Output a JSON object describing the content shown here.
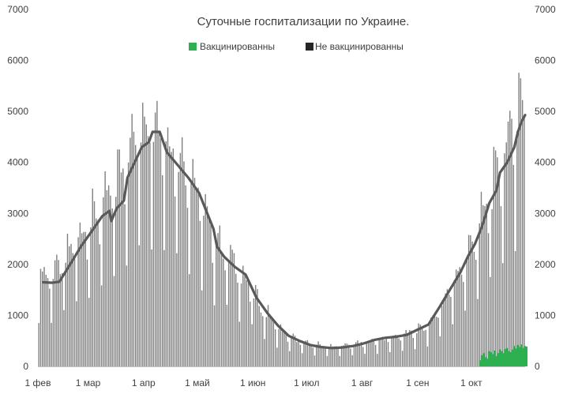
{
  "chart_data": {
    "type": "bar",
    "title": "Суточные госпитализации по Украине.",
    "ylim": [
      0,
      7000
    ],
    "y_ticks": [
      0,
      1000,
      2000,
      3000,
      4000,
      5000,
      6000,
      7000
    ],
    "x_tick_labels": [
      {
        "label": "1 фев",
        "day": 0
      },
      {
        "label": "1 мар",
        "day": 28
      },
      {
        "label": "1 апр",
        "day": 59
      },
      {
        "label": "1 май",
        "day": 89
      },
      {
        "label": "1 июн",
        "day": 120
      },
      {
        "label": "1 июл",
        "day": 150
      },
      {
        "label": "1 авг",
        "day": 181
      },
      {
        "label": "1 сен",
        "day": 212
      },
      {
        "label": "1 окт",
        "day": 242
      }
    ],
    "total_days": 272,
    "series": [
      {
        "name": "Вакцинированны",
        "color": "#2db050"
      },
      {
        "name": "Не вакцинированны",
        "color": "#808080"
      }
    ],
    "trend_color": "#595959",
    "bar_color": "#808080",
    "vaccinated_start_day": 246,
    "vaccinated_values": [
      120,
      220,
      260,
      180,
      150,
      300,
      280,
      240,
      310,
      200,
      260,
      330,
      300,
      260,
      340,
      360,
      300,
      280,
      330,
      400,
      350,
      420,
      380,
      430,
      360,
      400,
      390
    ],
    "anchors": [
      [
        0,
        1700
      ],
      [
        7,
        1650
      ],
      [
        14,
        1900
      ],
      [
        21,
        2300
      ],
      [
        28,
        2600
      ],
      [
        35,
        2850
      ],
      [
        42,
        3250
      ],
      [
        50,
        3950
      ],
      [
        57,
        4400
      ],
      [
        61,
        4650
      ],
      [
        66,
        4450
      ],
      [
        75,
        4000
      ],
      [
        85,
        3500
      ],
      [
        95,
        2500
      ],
      [
        105,
        2050
      ],
      [
        115,
        1600
      ],
      [
        125,
        1050
      ],
      [
        135,
        650
      ],
      [
        145,
        450
      ],
      [
        155,
        380
      ],
      [
        165,
        360
      ],
      [
        175,
        390
      ],
      [
        185,
        450
      ],
      [
        195,
        520
      ],
      [
        205,
        580
      ],
      [
        215,
        700
      ],
      [
        220,
        850
      ],
      [
        228,
        1300
      ],
      [
        236,
        1800
      ],
      [
        243,
        2300
      ],
      [
        250,
        2900
      ],
      [
        256,
        3500
      ],
      [
        261,
        4000
      ],
      [
        266,
        4500
      ],
      [
        269,
        4800
      ],
      [
        272,
        4900
      ]
    ],
    "trend_points": [
      [
        3,
        1650
      ],
      [
        8,
        1640
      ],
      [
        12,
        1660
      ],
      [
        18,
        2000
      ],
      [
        24,
        2350
      ],
      [
        30,
        2650
      ],
      [
        36,
        2950
      ],
      [
        40,
        3050
      ],
      [
        41,
        2850
      ],
      [
        44,
        3100
      ],
      [
        48,
        3250
      ],
      [
        50,
        3700
      ],
      [
        54,
        4000
      ],
      [
        58,
        4300
      ],
      [
        62,
        4400
      ],
      [
        64,
        4600
      ],
      [
        68,
        4600
      ],
      [
        72,
        4200
      ],
      [
        78,
        3950
      ],
      [
        84,
        3700
      ],
      [
        90,
        3400
      ],
      [
        94,
        3050
      ],
      [
        98,
        2700
      ],
      [
        100,
        2350
      ],
      [
        104,
        2150
      ],
      [
        110,
        1950
      ],
      [
        116,
        1800
      ],
      [
        122,
        1350
      ],
      [
        128,
        1050
      ],
      [
        134,
        800
      ],
      [
        140,
        600
      ],
      [
        146,
        500
      ],
      [
        152,
        420
      ],
      [
        158,
        380
      ],
      [
        164,
        360
      ],
      [
        170,
        370
      ],
      [
        176,
        400
      ],
      [
        182,
        450
      ],
      [
        188,
        520
      ],
      [
        194,
        560
      ],
      [
        200,
        580
      ],
      [
        206,
        620
      ],
      [
        212,
        720
      ],
      [
        218,
        820
      ],
      [
        224,
        1150
      ],
      [
        230,
        1500
      ],
      [
        236,
        1850
      ],
      [
        240,
        2150
      ],
      [
        244,
        2400
      ],
      [
        248,
        2750
      ],
      [
        252,
        3200
      ],
      [
        256,
        3450
      ],
      [
        258,
        3800
      ],
      [
        262,
        4000
      ],
      [
        266,
        4300
      ],
      [
        268,
        4600
      ],
      [
        270,
        4800
      ],
      [
        272,
        4930
      ]
    ]
  }
}
